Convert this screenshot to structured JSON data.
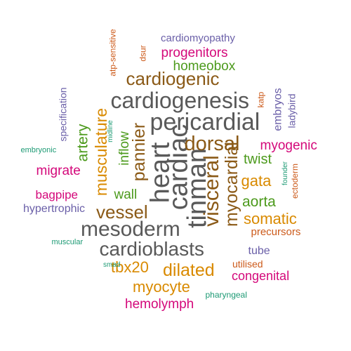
{
  "colors": {
    "gray": "#595959",
    "brown": "#8b5a17",
    "green": "#4c9a1c",
    "orange": "#d98a00",
    "magenta": "#d4087a",
    "purple": "#6a5fa8",
    "teal": "#1d9a74",
    "rust": "#cc5a1a"
  },
  "words": [
    {
      "id": "heart",
      "text": "heart",
      "color": "gray",
      "vertical": true
    },
    {
      "id": "pericardial",
      "text": "pericardial",
      "color": "gray",
      "vertical": false
    },
    {
      "id": "cardiogenesis",
      "text": "cardiogenesis",
      "color": "gray",
      "vertical": false
    },
    {
      "id": "mesoderm",
      "text": "mesoderm",
      "color": "gray",
      "vertical": false
    },
    {
      "id": "cardioblasts",
      "text": "cardioblasts",
      "color": "gray",
      "vertical": false
    },
    {
      "id": "cardiac",
      "text": "cardiac",
      "color": "gray",
      "vertical": true
    },
    {
      "id": "tinman",
      "text": "tinman",
      "color": "gray",
      "vertical": true
    },
    {
      "id": "cardiogenic",
      "text": "cardiogenic",
      "color": "brown",
      "vertical": false
    },
    {
      "id": "vessel",
      "text": "vessel",
      "color": "brown",
      "vertical": false
    },
    {
      "id": "dorsal",
      "text": "dorsal",
      "color": "brown",
      "vertical": false
    },
    {
      "id": "visceral",
      "text": "visceral",
      "color": "brown",
      "vertical": true
    },
    {
      "id": "myocardial",
      "text": "myocardial",
      "color": "brown",
      "vertical": true
    },
    {
      "id": "pannier",
      "text": "pannier",
      "color": "brown",
      "vertical": true
    },
    {
      "id": "musculature",
      "text": "musculature",
      "color": "orange",
      "vertical": true
    },
    {
      "id": "homeobox",
      "text": "homeobox",
      "color": "green",
      "vertical": false
    },
    {
      "id": "artery",
      "text": "artery",
      "color": "green",
      "vertical": true
    },
    {
      "id": "inflow",
      "text": "inflow",
      "color": "green",
      "vertical": true
    },
    {
      "id": "wall",
      "text": "wall",
      "color": "green",
      "vertical": false
    },
    {
      "id": "twist",
      "text": "twist",
      "color": "green",
      "vertical": false
    },
    {
      "id": "aorta",
      "text": "aorta",
      "color": "green",
      "vertical": false
    },
    {
      "id": "gata",
      "text": "gata",
      "color": "orange",
      "vertical": false
    },
    {
      "id": "somatic",
      "text": "somatic",
      "color": "orange",
      "vertical": false
    },
    {
      "id": "tbx20",
      "text": "tbx20",
      "color": "orange",
      "vertical": false
    },
    {
      "id": "dilated",
      "text": "dilated",
      "color": "orange",
      "vertical": false
    },
    {
      "id": "myocyte",
      "text": "myocyte",
      "color": "orange",
      "vertical": false
    },
    {
      "id": "progenitors",
      "text": "progenitors",
      "color": "magenta",
      "vertical": false
    },
    {
      "id": "myogenic",
      "text": "myogenic",
      "color": "magenta",
      "vertical": false
    },
    {
      "id": "migrate",
      "text": "migrate",
      "color": "magenta",
      "vertical": false
    },
    {
      "id": "bagpipe",
      "text": "bagpipe",
      "color": "magenta",
      "vertical": false
    },
    {
      "id": "congenital",
      "text": "congenital",
      "color": "magenta",
      "vertical": false
    },
    {
      "id": "hemolymph",
      "text": "hemolymph",
      "color": "magenta",
      "vertical": false
    },
    {
      "id": "cardiomyopathy",
      "text": "cardiomyopathy",
      "color": "purple",
      "vertical": false
    },
    {
      "id": "specification",
      "text": "specification",
      "color": "purple",
      "vertical": true
    },
    {
      "id": "embryos",
      "text": "embryos",
      "color": "purple",
      "vertical": true
    },
    {
      "id": "ladybird",
      "text": "ladybird",
      "color": "purple",
      "vertical": true
    },
    {
      "id": "hypertrophic",
      "text": "hypertrophic",
      "color": "purple",
      "vertical": false
    },
    {
      "id": "tube",
      "text": "tube",
      "color": "purple",
      "vertical": false
    },
    {
      "id": "atp-sensitive",
      "text": "atp-sensitive",
      "color": "rust",
      "vertical": true
    },
    {
      "id": "dsur",
      "text": "dsur",
      "color": "rust",
      "vertical": true
    },
    {
      "id": "katp",
      "text": "katp",
      "color": "rust",
      "vertical": true
    },
    {
      "id": "ectoderm",
      "text": "ectoderm",
      "color": "rust",
      "vertical": true
    },
    {
      "id": "precursors",
      "text": "precursors",
      "color": "rust",
      "vertical": false
    },
    {
      "id": "utilised",
      "text": "utilised",
      "color": "rust",
      "vertical": false
    },
    {
      "id": "embryonic",
      "text": "embryonic",
      "color": "teal",
      "vertical": false
    },
    {
      "id": "midline",
      "text": "midline",
      "color": "teal",
      "vertical": true
    },
    {
      "id": "founder",
      "text": "founder",
      "color": "teal",
      "vertical": true
    },
    {
      "id": "muscular",
      "text": "muscular",
      "color": "teal",
      "vertical": false
    },
    {
      "id": "smad",
      "text": "smad",
      "color": "teal",
      "vertical": false
    },
    {
      "id": "pharyngeal",
      "text": "pharyngeal",
      "color": "teal",
      "vertical": false
    }
  ]
}
